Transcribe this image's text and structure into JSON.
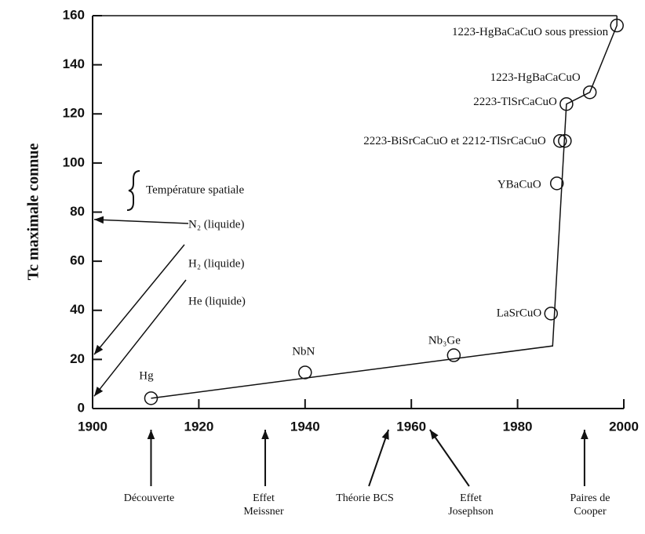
{
  "chart_data": {
    "type": "scatter",
    "ylabel": "Tc maximale connue",
    "xlim": [
      1900,
      2000
    ],
    "xticks": [
      1900,
      1920,
      1940,
      1960,
      1980,
      2000
    ],
    "ylim": [
      0,
      160
    ],
    "yticks": [
      0,
      20,
      40,
      60,
      80,
      100,
      120,
      140,
      160
    ],
    "points": {
      "x": [
        1911,
        1940,
        1968,
        1986.3,
        1987.4,
        1988,
        1988.9,
        1989.2,
        1993.6,
        1998.7
      ],
      "y": [
        4.2,
        14.7,
        21.7,
        38.7,
        91.7,
        109,
        109,
        124,
        128.8,
        156
      ],
      "labels": [
        "Hg",
        "NbN",
        "Nb₃Ge",
        "LaSrCuO",
        "YBaCuO",
        "2223-BiSrCaCuO et 2212-TlSrCaCuO",
        null,
        "2223-TlSrCaCuO",
        "1223-HgBaCaCuO",
        "1223-HgBaCaCuO sous pression"
      ]
    },
    "line": {
      "x": [
        1911,
        1986.6,
        1989.2,
        1993.6,
        1998.7,
        1998.7
      ],
      "y": [
        4.2,
        25.5,
        124,
        128.8,
        156,
        160
      ]
    },
    "liquids": [
      {
        "label": "N₂ (liquide)",
        "y": 77
      },
      {
        "label": "H₂ (liquide)",
        "y": 22
      },
      {
        "label": "He (liquide)",
        "y": 5
      }
    ],
    "brace_label": "Température spatiale",
    "events": [
      {
        "label": [
          "Découverte"
        ],
        "x": 1911
      },
      {
        "label": [
          "Effet",
          "Meissner"
        ],
        "x": 1932.5
      },
      {
        "label": [
          "Théorie BCS"
        ],
        "x": 1955.7
      },
      {
        "label": [
          "Effet",
          "Josephson"
        ],
        "x": 1963.5
      },
      {
        "label": [
          "Paires de",
          "Cooper"
        ],
        "x": 1992.6
      }
    ]
  }
}
